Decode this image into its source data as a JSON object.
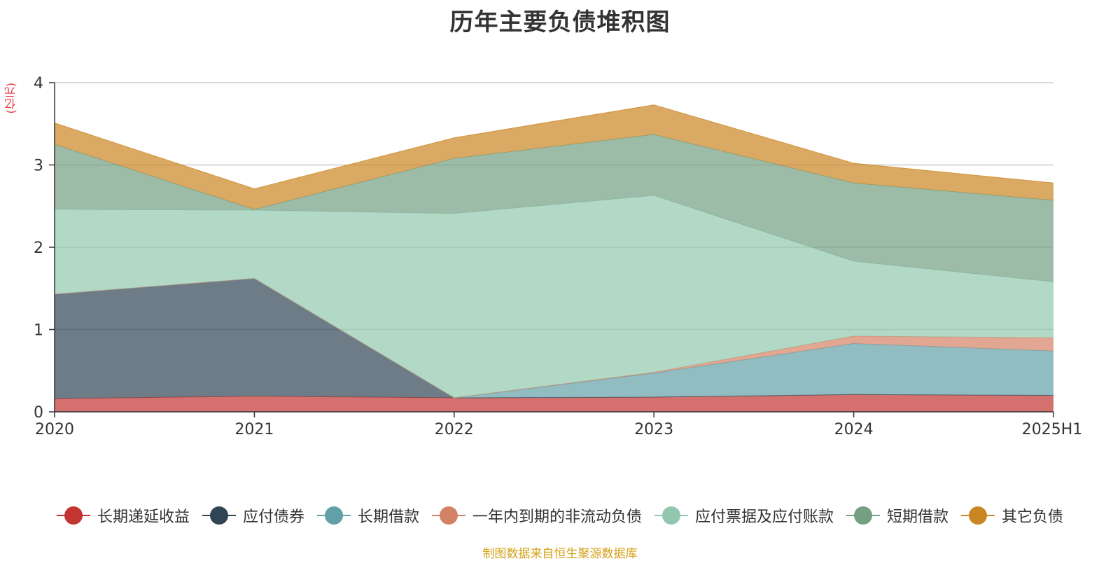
{
  "chart_data": {
    "type": "area",
    "stacked": true,
    "title": "历年主要负债堆积图",
    "unit": "(亿元)",
    "x": [
      "2020",
      "2021",
      "2022",
      "2023",
      "2024",
      "2025H1"
    ],
    "ylim": [
      0,
      4
    ],
    "yticks": [
      0,
      1,
      2,
      3,
      4
    ],
    "grid": true,
    "legend_position": "bottom",
    "series": [
      {
        "name": "长期递延收益",
        "color": "#c23531",
        "values": [
          0.16,
          0.19,
          0.17,
          0.18,
          0.21,
          0.2
        ]
      },
      {
        "name": "应付债券",
        "color": "#2f4554",
        "values": [
          1.27,
          1.43,
          0.0,
          0.0,
          0.0,
          0.0
        ]
      },
      {
        "name": "长期借款",
        "color": "#61a0a8",
        "values": [
          0.0,
          0.0,
          0.0,
          0.29,
          0.62,
          0.54
        ]
      },
      {
        "name": "一年内到期的非流动负债",
        "color": "#d48265",
        "values": [
          0.0,
          0.0,
          0.0,
          0.01,
          0.09,
          0.16
        ]
      },
      {
        "name": "应付票据及应付账款",
        "color": "#91c7ae",
        "values": [
          1.03,
          0.83,
          2.24,
          2.15,
          0.91,
          0.68
        ]
      },
      {
        "name": "短期借款",
        "color": "#749f83",
        "values": [
          0.79,
          0.01,
          0.67,
          0.74,
          0.95,
          0.99
        ]
      },
      {
        "name": "其它负债",
        "color": "#ca8622",
        "values": [
          0.26,
          0.25,
          0.25,
          0.36,
          0.24,
          0.21
        ]
      }
    ]
  },
  "footer": {
    "source_note": "制图数据来自恒生聚源数据库"
  }
}
